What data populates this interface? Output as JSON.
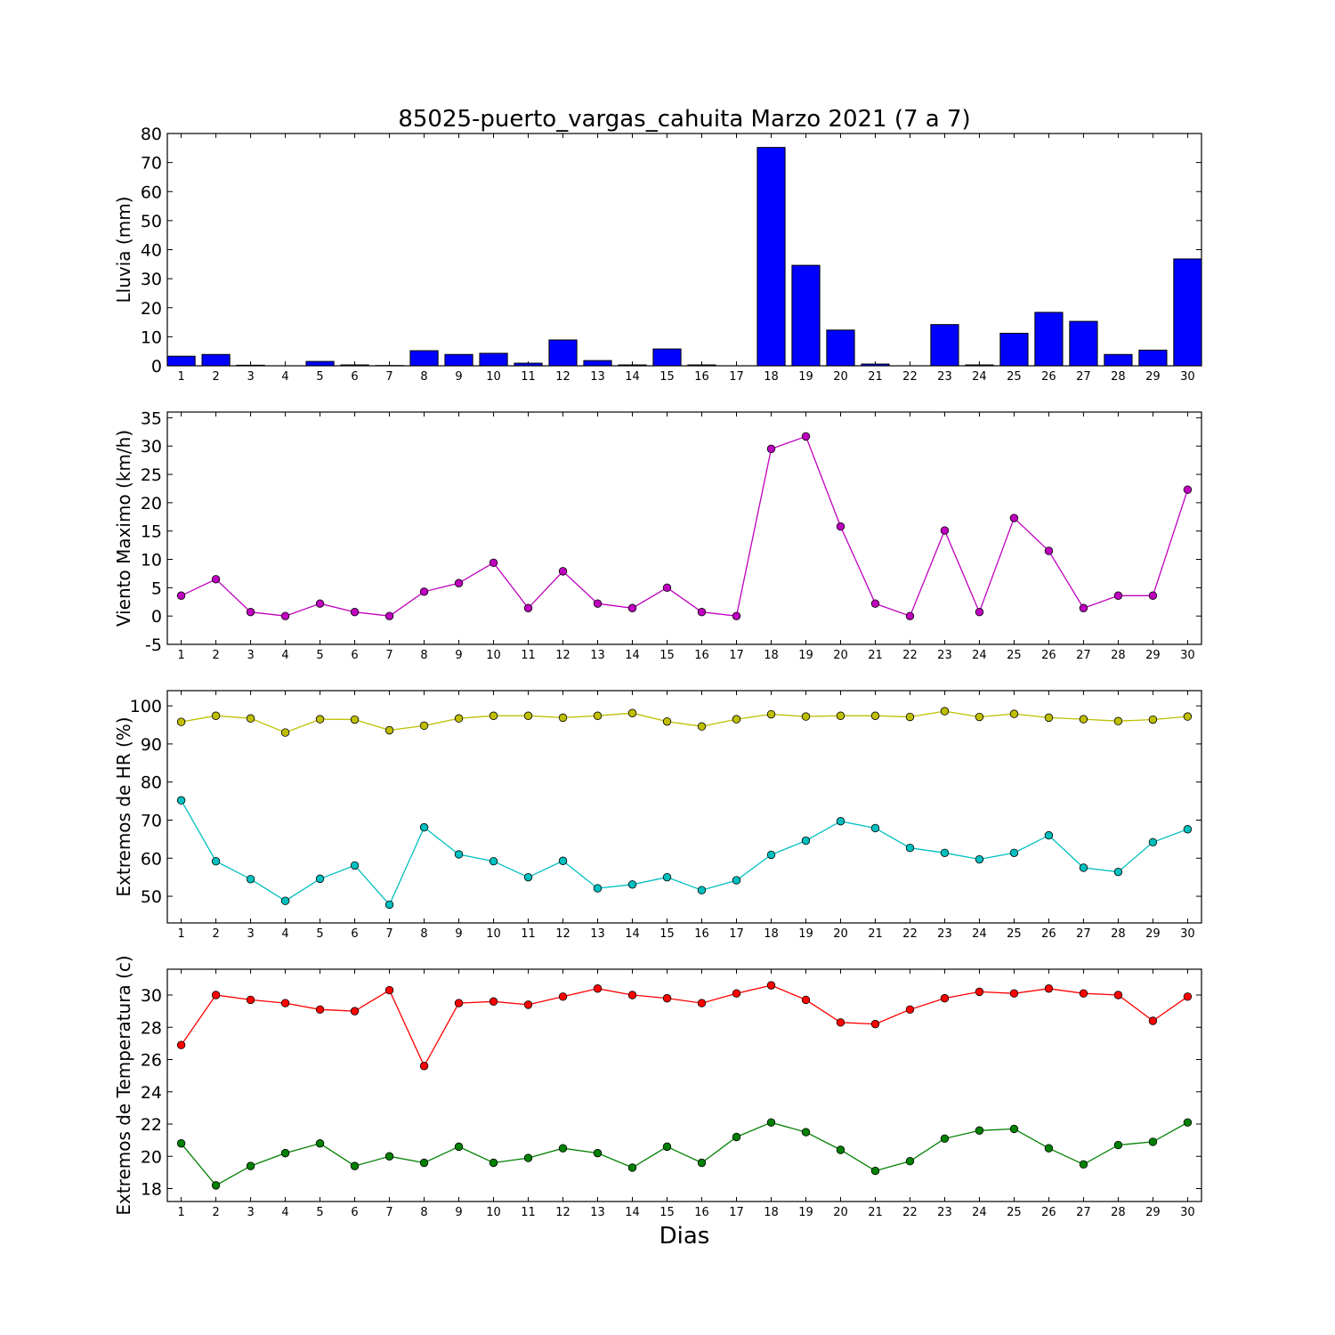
{
  "figure": {
    "title": "85025-puerto_vargas_cahuita Marzo 2021  (7 a 7)",
    "xlabel": "Dias"
  },
  "chart_data": [
    {
      "type": "bar",
      "ylabel": "Lluvia (mm)",
      "ylim": [
        0,
        80
      ],
      "yticks": [
        0,
        10,
        20,
        30,
        40,
        50,
        60,
        70,
        80
      ],
      "categories": [
        "1",
        "2",
        "3",
        "4",
        "5",
        "6",
        "7",
        "8",
        "9",
        "10",
        "11",
        "12",
        "13",
        "14",
        "15",
        "16",
        "17",
        "18",
        "19",
        "20",
        "21",
        "22",
        "23",
        "24",
        "25",
        "26",
        "27",
        "28",
        "29",
        "30"
      ],
      "series": [
        {
          "color": "#0000ff",
          "values": [
            3.3,
            3.9,
            0.2,
            0,
            1.5,
            0.3,
            0.1,
            5.2,
            3.9,
            4.3,
            0.9,
            8.9,
            1.8,
            0.3,
            5.8,
            0.3,
            0,
            75.2,
            34.6,
            12.3,
            0.6,
            0,
            14.2,
            0.3,
            11.2,
            18.4,
            15.3,
            3.9,
            5.4,
            36.8
          ]
        }
      ]
    },
    {
      "type": "line",
      "ylabel": "Viento Maximo (km/h)",
      "ylim": [
        -5,
        36
      ],
      "yticks": [
        -5,
        0,
        5,
        10,
        15,
        20,
        25,
        30,
        35
      ],
      "x": [
        "1",
        "2",
        "3",
        "4",
        "5",
        "6",
        "7",
        "8",
        "9",
        "10",
        "11",
        "12",
        "13",
        "14",
        "15",
        "16",
        "17",
        "18",
        "19",
        "20",
        "21",
        "22",
        "23",
        "24",
        "25",
        "26",
        "27",
        "28",
        "29",
        "30"
      ],
      "series": [
        {
          "color": "#bf00bf",
          "values": [
            3.6,
            6.5,
            0.7,
            0,
            2.2,
            0.7,
            0,
            4.3,
            5.8,
            9.4,
            1.4,
            7.9,
            2.2,
            1.4,
            5.0,
            0.7,
            0,
            29.5,
            31.7,
            15.8,
            2.2,
            0,
            15.1,
            0.7,
            17.3,
            11.5,
            1.4,
            3.6,
            3.6,
            22.3
          ]
        }
      ]
    },
    {
      "type": "line",
      "ylabel": "Extremos de HR (%)",
      "ylim": [
        43,
        104
      ],
      "yticks": [
        50,
        60,
        70,
        80,
        90,
        100
      ],
      "x": [
        "1",
        "2",
        "3",
        "4",
        "5",
        "6",
        "7",
        "8",
        "9",
        "10",
        "11",
        "12",
        "13",
        "14",
        "15",
        "16",
        "17",
        "18",
        "19",
        "20",
        "21",
        "22",
        "23",
        "24",
        "25",
        "26",
        "27",
        "28",
        "29",
        "30"
      ],
      "series": [
        {
          "color": "#bfbf00",
          "values": [
            95.8,
            97.4,
            96.7,
            93.0,
            96.5,
            96.4,
            93.6,
            94.8,
            96.7,
            97.4,
            97.4,
            96.9,
            97.4,
            98.1,
            95.9,
            94.6,
            96.5,
            97.8,
            97.2,
            97.4,
            97.4,
            97.1,
            98.6,
            97.1,
            97.9,
            96.9,
            96.5,
            96.0,
            96.4,
            97.2
          ]
        },
        {
          "color": "#00bfbf",
          "values": [
            75.2,
            59.2,
            54.5,
            48.8,
            54.6,
            58.1,
            47.8,
            68.1,
            61.0,
            59.2,
            55.0,
            59.3,
            52.1,
            53.1,
            55.0,
            51.6,
            54.2,
            60.9,
            64.6,
            69.7,
            67.9,
            62.7,
            61.4,
            59.7,
            61.4,
            66.0,
            57.5,
            56.4,
            64.2,
            67.6
          ]
        }
      ]
    },
    {
      "type": "line",
      "ylabel": "Extremos de Temperatura (c)",
      "ylim": [
        17.2,
        31.6
      ],
      "yticks": [
        18,
        20,
        22,
        24,
        26,
        28,
        30
      ],
      "x": [
        "1",
        "2",
        "3",
        "4",
        "5",
        "6",
        "7",
        "8",
        "9",
        "10",
        "11",
        "12",
        "13",
        "14",
        "15",
        "16",
        "17",
        "18",
        "19",
        "20",
        "21",
        "22",
        "23",
        "24",
        "25",
        "26",
        "27",
        "28",
        "29",
        "30"
      ],
      "series": [
        {
          "color": "#ff0000",
          "values": [
            26.9,
            30.0,
            29.7,
            29.5,
            29.1,
            29.0,
            30.3,
            25.6,
            29.5,
            29.6,
            29.4,
            29.9,
            30.4,
            30.0,
            29.8,
            29.5,
            30.1,
            30.6,
            29.7,
            28.3,
            28.2,
            29.1,
            29.8,
            30.2,
            30.1,
            30.4,
            30.1,
            30.0,
            28.4,
            29.9
          ]
        },
        {
          "color": "#008000",
          "values": [
            20.8,
            18.2,
            19.4,
            20.2,
            20.8,
            19.4,
            20.0,
            19.6,
            20.6,
            19.6,
            19.9,
            20.5,
            20.2,
            19.3,
            20.6,
            19.6,
            21.2,
            22.1,
            21.5,
            20.4,
            19.1,
            19.7,
            21.1,
            21.6,
            21.7,
            20.5,
            19.5,
            20.7,
            20.9,
            22.1
          ]
        }
      ]
    }
  ]
}
